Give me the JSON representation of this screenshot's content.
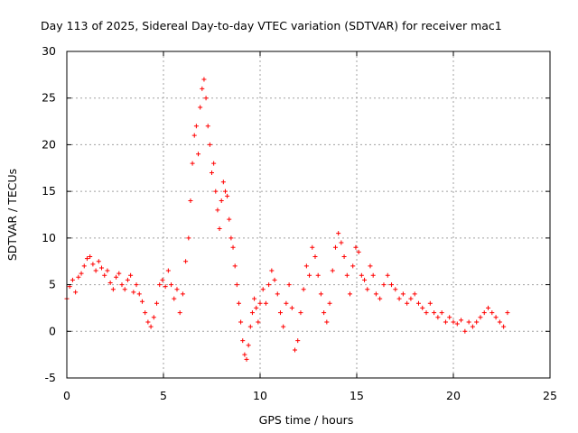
{
  "chart_data": {
    "type": "scatter",
    "title": "Day 113 of 2025, Sidereal Day-to-day VTEC variation (SDTVAR) for receiver mac1",
    "xlabel": "GPS time / hours",
    "ylabel": "SDTVAR / TECUs",
    "xlim": [
      0,
      25
    ],
    "ylim": [
      -5,
      30
    ],
    "x_ticks": [
      0,
      5,
      10,
      15,
      20,
      25
    ],
    "y_ticks": [
      -5,
      0,
      5,
      10,
      15,
      20,
      25,
      30
    ],
    "grid": true,
    "marker": "plus",
    "series_color": "#ff0000",
    "series": [
      {
        "name": "SDTVAR",
        "points": [
          [
            0.0,
            3.5
          ],
          [
            0.15,
            4.8
          ],
          [
            0.3,
            5.5
          ],
          [
            0.45,
            4.2
          ],
          [
            0.6,
            5.8
          ],
          [
            0.75,
            6.2
          ],
          [
            0.9,
            7.0
          ],
          [
            1.05,
            7.8
          ],
          [
            1.2,
            8.0
          ],
          [
            1.35,
            7.2
          ],
          [
            1.5,
            6.5
          ],
          [
            1.65,
            7.5
          ],
          [
            1.8,
            6.8
          ],
          [
            1.95,
            6.0
          ],
          [
            2.1,
            6.5
          ],
          [
            2.25,
            5.2
          ],
          [
            2.4,
            4.5
          ],
          [
            2.55,
            5.8
          ],
          [
            2.7,
            6.2
          ],
          [
            2.85,
            5.0
          ],
          [
            3.0,
            4.5
          ],
          [
            3.15,
            5.5
          ],
          [
            3.3,
            6.0
          ],
          [
            3.45,
            4.2
          ],
          [
            3.6,
            5.0
          ],
          [
            3.75,
            4.0
          ],
          [
            3.9,
            3.2
          ],
          [
            4.05,
            2.0
          ],
          [
            4.2,
            1.0
          ],
          [
            4.35,
            0.5
          ],
          [
            4.5,
            1.5
          ],
          [
            4.65,
            3.0
          ],
          [
            4.8,
            5.0
          ],
          [
            4.95,
            5.5
          ],
          [
            5.1,
            4.8
          ],
          [
            5.25,
            6.5
          ],
          [
            5.4,
            5.0
          ],
          [
            5.55,
            3.5
          ],
          [
            5.7,
            4.5
          ],
          [
            5.85,
            2.0
          ],
          [
            6.0,
            4.0
          ],
          [
            6.15,
            7.5
          ],
          [
            6.3,
            10.0
          ],
          [
            6.4,
            14.0
          ],
          [
            6.5,
            18.0
          ],
          [
            6.6,
            21.0
          ],
          [
            6.7,
            22.0
          ],
          [
            6.8,
            19.0
          ],
          [
            6.9,
            24.0
          ],
          [
            7.0,
            26.0
          ],
          [
            7.1,
            27.0
          ],
          [
            7.2,
            25.0
          ],
          [
            7.3,
            22.0
          ],
          [
            7.4,
            20.0
          ],
          [
            7.5,
            17.0
          ],
          [
            7.6,
            18.0
          ],
          [
            7.7,
            15.0
          ],
          [
            7.8,
            13.0
          ],
          [
            7.9,
            11.0
          ],
          [
            8.0,
            14.0
          ],
          [
            8.1,
            16.0
          ],
          [
            8.2,
            15.0
          ],
          [
            8.3,
            14.5
          ],
          [
            8.4,
            12.0
          ],
          [
            8.5,
            10.0
          ],
          [
            8.6,
            9.0
          ],
          [
            8.7,
            7.0
          ],
          [
            8.8,
            5.0
          ],
          [
            8.9,
            3.0
          ],
          [
            9.0,
            1.0
          ],
          [
            9.1,
            -1.0
          ],
          [
            9.2,
            -2.5
          ],
          [
            9.3,
            -3.0
          ],
          [
            9.4,
            -1.5
          ],
          [
            9.5,
            0.5
          ],
          [
            9.6,
            2.0
          ],
          [
            9.7,
            3.5
          ],
          [
            9.8,
            2.5
          ],
          [
            9.9,
            1.0
          ],
          [
            10.0,
            3.0
          ],
          [
            10.15,
            4.5
          ],
          [
            10.3,
            3.0
          ],
          [
            10.45,
            5.0
          ],
          [
            10.6,
            6.5
          ],
          [
            10.75,
            5.5
          ],
          [
            10.9,
            4.0
          ],
          [
            11.05,
            2.0
          ],
          [
            11.2,
            0.5
          ],
          [
            11.35,
            3.0
          ],
          [
            11.5,
            5.0
          ],
          [
            11.65,
            2.5
          ],
          [
            11.8,
            -2.0
          ],
          [
            11.95,
            -1.0
          ],
          [
            12.1,
            2.0
          ],
          [
            12.25,
            4.5
          ],
          [
            12.4,
            7.0
          ],
          [
            12.55,
            6.0
          ],
          [
            12.7,
            9.0
          ],
          [
            12.85,
            8.0
          ],
          [
            13.0,
            6.0
          ],
          [
            13.15,
            4.0
          ],
          [
            13.3,
            2.0
          ],
          [
            13.45,
            1.0
          ],
          [
            13.6,
            3.0
          ],
          [
            13.75,
            6.5
          ],
          [
            13.9,
            9.0
          ],
          [
            14.05,
            10.5
          ],
          [
            14.2,
            9.5
          ],
          [
            14.35,
            8.0
          ],
          [
            14.5,
            6.0
          ],
          [
            14.65,
            4.0
          ],
          [
            14.8,
            7.0
          ],
          [
            14.95,
            9.0
          ],
          [
            15.1,
            8.5
          ],
          [
            15.25,
            6.0
          ],
          [
            15.4,
            5.5
          ],
          [
            15.55,
            4.5
          ],
          [
            15.7,
            7.0
          ],
          [
            15.85,
            6.0
          ],
          [
            16.0,
            4.0
          ],
          [
            16.2,
            3.5
          ],
          [
            16.4,
            5.0
          ],
          [
            16.6,
            6.0
          ],
          [
            16.8,
            5.0
          ],
          [
            17.0,
            4.5
          ],
          [
            17.2,
            3.5
          ],
          [
            17.4,
            4.0
          ],
          [
            17.6,
            3.0
          ],
          [
            17.8,
            3.5
          ],
          [
            18.0,
            4.0
          ],
          [
            18.2,
            3.0
          ],
          [
            18.4,
            2.5
          ],
          [
            18.6,
            2.0
          ],
          [
            18.8,
            3.0
          ],
          [
            19.0,
            2.0
          ],
          [
            19.2,
            1.5
          ],
          [
            19.4,
            2.0
          ],
          [
            19.6,
            1.0
          ],
          [
            19.8,
            1.5
          ],
          [
            20.0,
            1.0
          ],
          [
            20.2,
            0.8
          ],
          [
            20.4,
            1.2
          ],
          [
            20.6,
            0.0
          ],
          [
            20.8,
            1.0
          ],
          [
            21.0,
            0.5
          ],
          [
            21.2,
            1.0
          ],
          [
            21.4,
            1.5
          ],
          [
            21.6,
            2.0
          ],
          [
            21.8,
            2.5
          ],
          [
            22.0,
            2.0
          ],
          [
            22.2,
            1.5
          ],
          [
            22.4,
            1.0
          ],
          [
            22.6,
            0.5
          ],
          [
            22.8,
            2.0
          ]
        ]
      }
    ]
  }
}
